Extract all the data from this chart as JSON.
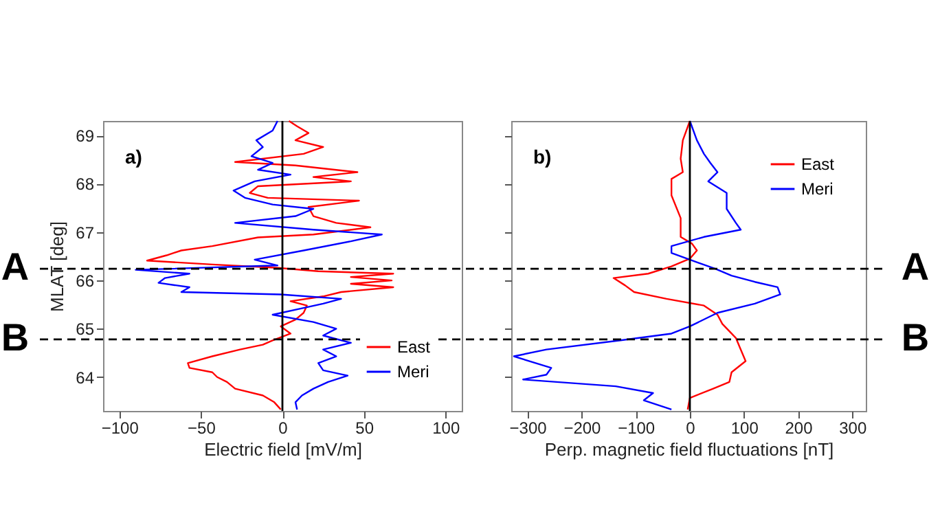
{
  "chart_data": [
    {
      "type": "line",
      "orientation": "horizontal",
      "annotations": [
        "a)"
      ],
      "xlabel": "Electric field [mV/m]",
      "ylabel": "MLAT [deg]",
      "xlim": [
        -110,
        110
      ],
      "xticks": [
        -100,
        -50,
        0,
        50,
        100
      ],
      "ylim": [
        63.3,
        69.3
      ],
      "yticks": [
        64,
        65,
        66,
        67,
        68,
        69
      ],
      "grid": false,
      "legend": "bottom right",
      "series": [
        {
          "name": "East",
          "color": "#ff0000",
          "x": [
            69.3,
            69.19,
            69.05,
            68.9,
            68.76,
            68.62,
            68.45,
            68.38,
            68.24,
            68.14,
            68.05,
            67.95,
            67.81,
            67.71,
            67.65,
            67.52,
            67.33,
            67.19,
            67.1,
            66.95,
            66.89,
            66.71,
            66.62,
            66.52,
            66.41,
            66.33,
            66.26,
            66.19,
            66.14,
            66.07,
            66.0,
            65.93,
            65.86,
            65.76,
            65.67,
            65.57,
            65.48,
            65.33,
            65.19,
            65.05,
            64.9,
            64.76,
            64.67,
            64.57,
            64.43,
            64.29,
            64.19,
            64.1,
            64.0,
            63.9,
            63.76,
            63.62,
            63.48,
            63.33
          ],
          "values": [
            4,
            9,
            16,
            8,
            25,
            13,
            -29,
            8,
            46,
            19,
            42,
            -15,
            -20,
            -9,
            47,
            16,
            19,
            33,
            54,
            19,
            -15,
            -43,
            -62,
            -71,
            -83,
            -43,
            -3,
            22,
            68,
            42,
            67,
            42,
            68,
            36,
            25,
            5,
            15,
            13,
            8,
            -1,
            5,
            -6,
            -12,
            -26,
            -43,
            -58,
            -57,
            -43,
            -40,
            -34,
            -29,
            -12,
            -5,
            -1
          ]
        },
        {
          "name": "Meri",
          "color": "#0000ff",
          "x": [
            69.3,
            69.1,
            68.9,
            68.76,
            68.57,
            68.43,
            68.29,
            68.19,
            68.05,
            67.86,
            67.71,
            67.57,
            67.48,
            67.33,
            67.19,
            67.05,
            66.95,
            66.81,
            66.62,
            66.43,
            66.31,
            66.22,
            66.14,
            66.05,
            65.95,
            65.86,
            65.76,
            65.71,
            65.62,
            65.52,
            65.43,
            65.29,
            65.14,
            65.0,
            64.86,
            64.71,
            64.57,
            64.43,
            64.29,
            64.14,
            64.03,
            63.9,
            63.76,
            63.62,
            63.48,
            63.33
          ],
          "values": [
            -3,
            -6,
            -16,
            -12,
            -19,
            -6,
            -15,
            5,
            -17,
            -30,
            -23,
            -6,
            19,
            8,
            -29,
            19,
            61,
            42,
            13,
            -17,
            -3,
            -90,
            -57,
            -72,
            -76,
            -57,
            -62,
            -1,
            36,
            25,
            13,
            -6,
            19,
            33,
            25,
            42,
            25,
            33,
            22,
            25,
            40,
            28,
            19,
            12,
            8,
            9
          ]
        }
      ],
      "ref_lines": [
        {
          "axis": "y",
          "value": 66.24,
          "label": "A",
          "line_style": "dashed",
          "color": "#000000"
        },
        {
          "axis": "y",
          "value": 64.78,
          "label": "B",
          "line_style": "dashed",
          "color": "#000000"
        },
        {
          "axis": "x",
          "value": 0,
          "color": "#000000"
        }
      ]
    },
    {
      "type": "line",
      "orientation": "horizontal",
      "annotations": [
        "b)"
      ],
      "xlabel": "Perp. magnetic field fluctuations [nT]",
      "xlim": [
        -330,
        325
      ],
      "xticks": [
        -300,
        -200,
        -100,
        0,
        100,
        200,
        300
      ],
      "ylim": [
        63.3,
        69.3
      ],
      "yticks": [
        64,
        65,
        66,
        67,
        68,
        69
      ],
      "tick_labels": "x",
      "grid": false,
      "legend": "top right",
      "series": [
        {
          "name": "East",
          "color": "#ff0000",
          "x": [
            69.3,
            68.9,
            68.52,
            68.24,
            68.1,
            67.76,
            67.29,
            66.9,
            66.76,
            66.62,
            66.45,
            66.29,
            66.14,
            66.05,
            65.9,
            65.76,
            65.62,
            65.48,
            65.29,
            65.1,
            64.81,
            64.57,
            64.33,
            64.1,
            63.9,
            63.76,
            63.57,
            63.33
          ],
          "values": [
            0,
            -13,
            -17,
            -13,
            -34,
            -34,
            -17,
            -17,
            4,
            13,
            0,
            -34,
            -77,
            -141,
            -120,
            -103,
            -43,
            26,
            51,
            60,
            85,
            94,
            103,
            77,
            73,
            43,
            0,
            -4
          ]
        },
        {
          "name": "Meri",
          "color": "#0000ff",
          "x": [
            69.3,
            68.9,
            68.62,
            68.43,
            68.24,
            68.05,
            67.81,
            67.48,
            67.19,
            67.05,
            66.9,
            66.71,
            66.57,
            66.43,
            66.24,
            66.1,
            65.97,
            65.86,
            65.71,
            65.52,
            65.33,
            65.05,
            64.9,
            64.76,
            64.57,
            64.43,
            64.19,
            64.05,
            63.95,
            63.81,
            63.67,
            63.52,
            63.33
          ],
          "values": [
            0,
            13,
            26,
            38,
            51,
            34,
            68,
            68,
            85,
            94,
            26,
            -34,
            -34,
            0,
            47,
            77,
            120,
            162,
            167,
            120,
            51,
            0,
            -34,
            -128,
            -265,
            -325,
            -256,
            -265,
            -308,
            -137,
            -68,
            -85,
            -34
          ]
        }
      ],
      "ref_lines": [
        {
          "axis": "y",
          "value": 66.24,
          "label": "A",
          "line_style": "dashed",
          "color": "#000000"
        },
        {
          "axis": "y",
          "value": 64.78,
          "label": "B",
          "line_style": "dashed",
          "color": "#000000"
        },
        {
          "axis": "x",
          "value": 0,
          "color": "#000000"
        }
      ]
    }
  ]
}
